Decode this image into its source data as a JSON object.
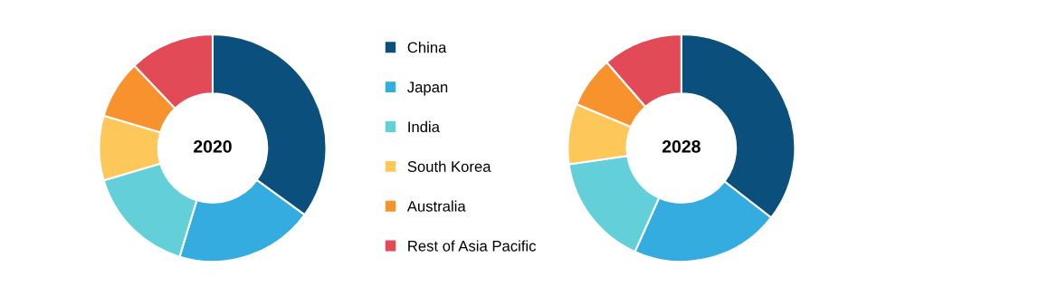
{
  "chart_data": [
    {
      "type": "donut",
      "title": "2020",
      "categories": [
        "China",
        "Japan",
        "India",
        "South Korea",
        "Australia",
        "Rest of Asia Pacific"
      ],
      "values": [
        35.0,
        19.7,
        15.7,
        9.2,
        8.3,
        12.1
      ],
      "colors": [
        "#0b4f7c",
        "#35ace0",
        "#62cfd9",
        "#fdc75a",
        "#f7922c",
        "#e24a57"
      ],
      "legend": "right"
    },
    {
      "type": "donut",
      "title": "2028",
      "categories": [
        null,
        null,
        null,
        null,
        null,
        null
      ],
      "values": [
        35.5,
        21.2,
        16.0,
        8.6,
        7.3,
        11.4
      ],
      "colors": [
        "#0b4f7c",
        "#35ace0",
        "#62cfd9",
        "#fdc75a",
        "#f7922c",
        "#e24a57"
      ]
    }
  ]
}
